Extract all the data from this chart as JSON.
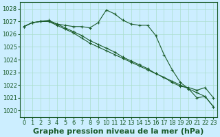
{
  "background_color": "#cceeff",
  "grid_color": "#aaddcc",
  "line_color": "#1a5c2a",
  "marker_color": "#1a5c2a",
  "xlabel": "Graphe pression niveau de la mer (hPa)",
  "xlabel_fontsize": 8,
  "tick_fontsize": 6,
  "ylim": [
    1019.5,
    1028.5
  ],
  "xlim": [
    -0.5,
    23.5
  ],
  "yticks": [
    1020,
    1021,
    1022,
    1023,
    1024,
    1025,
    1026,
    1027,
    1028
  ],
  "xticks": [
    0,
    1,
    2,
    3,
    4,
    5,
    6,
    7,
    8,
    9,
    10,
    11,
    12,
    13,
    14,
    15,
    16,
    17,
    18,
    19,
    20,
    21,
    22,
    23
  ],
  "series1": [
    1026.6,
    1026.9,
    1027.0,
    1027.0,
    1026.8,
    1026.7,
    1026.6,
    1026.6,
    1026.5,
    1026.9,
    1027.9,
    1027.6,
    1027.1,
    1026.8,
    1026.7,
    1026.7,
    1025.9,
    1024.4,
    1023.2,
    1022.2,
    1021.7,
    1021.0,
    1021.1,
    1020.3
  ],
  "series2": [
    1026.6,
    1026.9,
    1027.0,
    1027.0,
    1026.7,
    1026.4,
    1026.1,
    1025.7,
    1025.3,
    1025.0,
    1024.7,
    1024.4,
    1024.1,
    1023.8,
    1023.5,
    1023.2,
    1022.9,
    1022.6,
    1022.3,
    1022.0,
    1021.7,
    1021.4,
    1021.1,
    1020.3
  ],
  "series3": [
    1026.6,
    1026.9,
    1027.0,
    1027.1,
    1026.8,
    1026.5,
    1026.2,
    1025.9,
    1025.5,
    1025.2,
    1024.9,
    1024.6,
    1024.2,
    1023.9,
    1023.6,
    1023.3,
    1022.9,
    1022.6,
    1022.2,
    1021.9,
    1021.8,
    1021.6,
    1021.8,
    1021.0
  ]
}
